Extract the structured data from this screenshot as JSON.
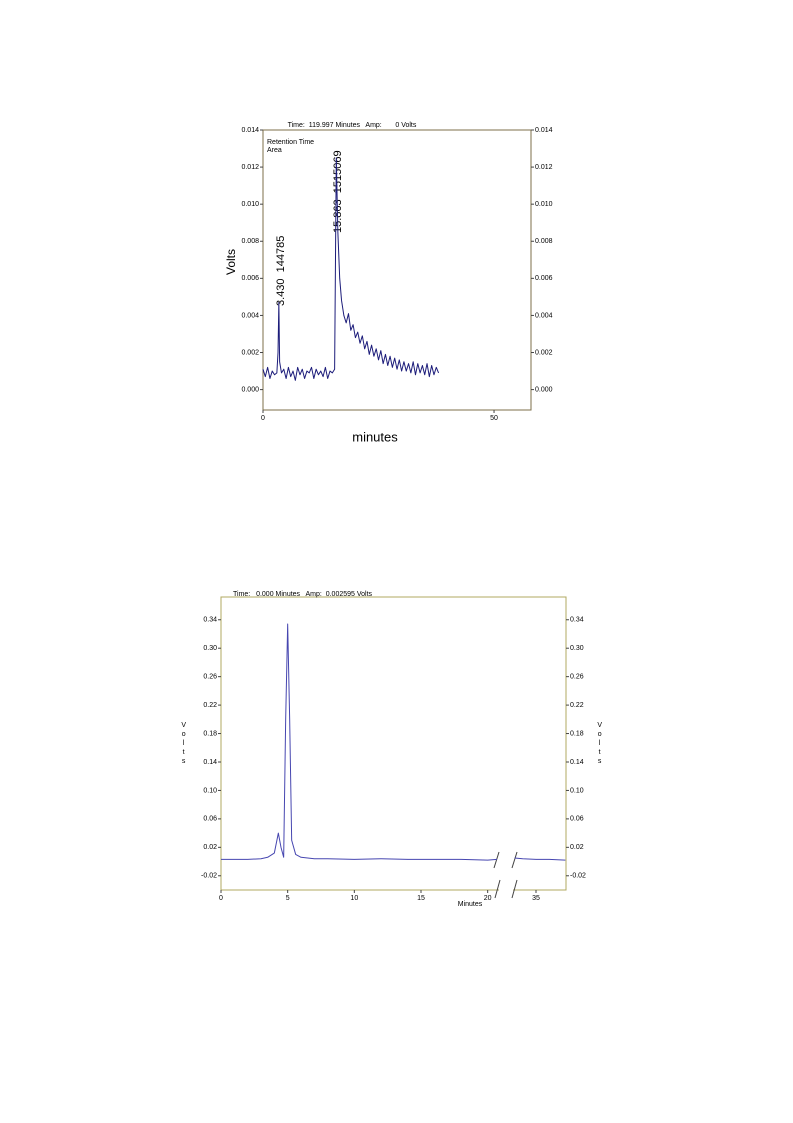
{
  "chart_data": [
    {
      "type": "line",
      "header": "Time:  119.997 Minutes   Amp:       0 Volts",
      "legend_labels": [
        "Retention Time",
        "Area"
      ],
      "annotations": [
        "3.430  144785",
        "15.863  1515069"
      ],
      "y_label": "Volts",
      "x_label": "minutes",
      "color": "#1c1c7a",
      "xlim": [
        0,
        58
      ],
      "xticks": [
        0,
        50
      ],
      "ylim": [
        -0.0011,
        0.014
      ],
      "yticks": [
        {
          "value": 0,
          "label": "0.000"
        },
        {
          "value": 0.002,
          "label": "0.002"
        },
        {
          "value": 0.004,
          "label": "0.004"
        },
        {
          "value": 0.006,
          "label": "0.006"
        },
        {
          "value": 0.008,
          "label": "0.008"
        },
        {
          "value": 0.01,
          "label": "0.010"
        },
        {
          "value": 0.012,
          "label": "0.012"
        },
        {
          "value": 0.014,
          "label": "0.014"
        }
      ],
      "x": [
        0,
        0.5,
        1,
        1.5,
        2,
        2.5,
        3,
        3.25,
        3.43,
        3.6,
        4,
        4.5,
        5,
        5.5,
        6,
        6.5,
        7,
        7.5,
        8,
        8.5,
        9,
        9.5,
        10,
        10.5,
        11,
        11.5,
        12,
        12.5,
        13,
        13.5,
        14,
        14.5,
        15,
        15.5,
        15.86,
        16.2,
        16.6,
        17,
        17.5,
        18,
        18.5,
        19,
        19.5,
        20,
        20.5,
        21,
        21.5,
        22,
        22.5,
        23,
        23.5,
        24,
        24.5,
        25,
        25.5,
        26,
        26.5,
        27,
        27.5,
        28,
        28.5,
        29,
        29.5,
        30,
        30.5,
        31,
        31.5,
        32,
        32.5,
        33,
        33.5,
        34,
        34.5,
        35,
        35.5,
        36,
        36.5,
        37,
        37.5,
        38
      ],
      "values": [
        0.0011,
        0.0007,
        0.0012,
        0.0006,
        0.001,
        0.0008,
        0.0009,
        0.002,
        0.0047,
        0.0015,
        0.0009,
        0.0011,
        0.0006,
        0.0012,
        0.0007,
        0.001,
        0.0005,
        0.0012,
        0.0008,
        0.0011,
        0.0006,
        0.001,
        0.0009,
        0.0012,
        0.0006,
        0.0011,
        0.0008,
        0.001,
        0.0007,
        0.0012,
        0.0006,
        0.001,
        0.0009,
        0.0011,
        0.0125,
        0.0085,
        0.006,
        0.0048,
        0.004,
        0.0036,
        0.0041,
        0.0032,
        0.0035,
        0.0028,
        0.0031,
        0.0025,
        0.0029,
        0.0022,
        0.0026,
        0.0019,
        0.0024,
        0.0018,
        0.0022,
        0.0016,
        0.0021,
        0.0014,
        0.0019,
        0.0013,
        0.0018,
        0.0012,
        0.0017,
        0.0011,
        0.0016,
        0.001,
        0.0015,
        0.001,
        0.0014,
        0.0009,
        0.0015,
        0.0008,
        0.0014,
        0.0009,
        0.0013,
        0.0008,
        0.0014,
        0.0007,
        0.0013,
        0.0008,
        0.0012,
        0.0009
      ]
    },
    {
      "type": "line",
      "header": "Time:   0.000 Minutes   Amp:  0.002595 Volts",
      "y_label": "Volts",
      "x_label": "Minutes",
      "color": "#4646b0",
      "ylim": [
        -0.04,
        0.372
      ],
      "yticks": [
        -0.02,
        0.02,
        0.06,
        {
          "value": 0.1,
          "label": "0.10"
        },
        0.14,
        0.18,
        0.22,
        0.26,
        {
          "value": 0.3,
          "label": "0.30"
        },
        0.34
      ],
      "x_segments": [
        {
          "xlim": [
            0,
            20.7
          ],
          "xticks": [
            0,
            5,
            10,
            15,
            20
          ]
        },
        {
          "xlim": [
            33.35,
            37.25
          ],
          "xticks": [
            35
          ]
        }
      ],
      "x": [
        0,
        1,
        2,
        3,
        3.5,
        4,
        4.3,
        4.5,
        4.7,
        4.85,
        5.0,
        5.15,
        5.3,
        5.6,
        6,
        7,
        8,
        10,
        12,
        14,
        16,
        18,
        20,
        20.7,
        21,
        33.4,
        34,
        35,
        36,
        37.2
      ],
      "values": [
        0.003,
        0.003,
        0.003,
        0.004,
        0.006,
        0.012,
        0.04,
        0.02,
        0.006,
        0.2,
        0.334,
        0.2,
        0.03,
        0.01,
        0.006,
        0.004,
        0.004,
        0.003,
        0.004,
        0.003,
        0.003,
        0.003,
        0.002,
        0.003,
        null,
        0.005,
        0.004,
        0.003,
        0.003,
        0.002
      ]
    }
  ]
}
